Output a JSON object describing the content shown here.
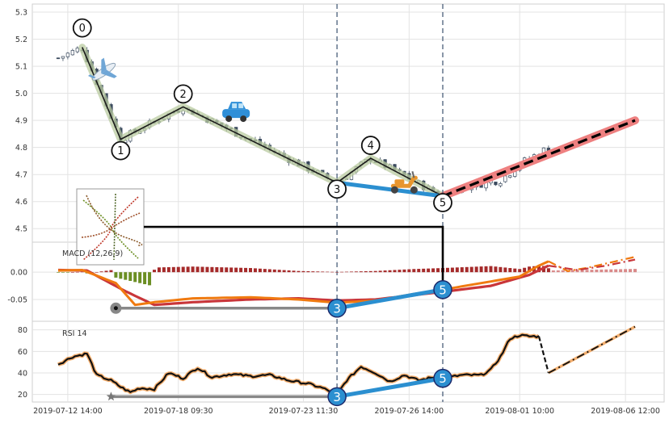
{
  "chart_data": [
    {
      "panel": "price",
      "type": "candlestick",
      "ylim": [
        4.45,
        5.33
      ],
      "y_ticks": [
        4.5,
        4.6,
        4.7,
        4.8,
        4.9,
        5.0,
        5.1,
        5.2,
        5.3
      ],
      "grid": true,
      "wave_points": [
        {
          "label": "0",
          "bar": 5,
          "value": 5.17
        },
        {
          "label": "1",
          "bar": 13,
          "value": 4.83
        },
        {
          "label": "2",
          "bar": 26,
          "value": 4.95
        },
        {
          "label": "3",
          "bar": 58,
          "value": 4.67
        },
        {
          "label": "4",
          "bar": 65,
          "value": 4.76
        },
        {
          "label": "5",
          "bar": 80,
          "value": 4.62
        }
      ],
      "projection": {
        "from_bar": 80,
        "from_value": 4.62,
        "to_bar": 120,
        "to_value": 4.9
      },
      "divergence_segment": {
        "from": "3",
        "to": "5"
      },
      "icons": [
        "airplane-icon",
        "car-icon",
        "scooter-icon"
      ]
    },
    {
      "panel": "macd",
      "type": "bar+line",
      "title": "MACD (12,26,9)",
      "ylim": [
        -0.09,
        0.055
      ],
      "y_ticks": [
        0.0,
        -0.05
      ],
      "tick_labels": [
        "0.00",
        "-0.05"
      ],
      "markers": [
        {
          "label": "3",
          "bar": 58,
          "value": -0.066
        },
        {
          "label": "5",
          "bar": 80,
          "value": -0.032
        }
      ]
    },
    {
      "panel": "rsi",
      "type": "line",
      "title": "RSI 14",
      "ylim": [
        13,
        88
      ],
      "y_ticks": [
        20,
        40,
        60,
        80
      ],
      "markers": [
        {
          "label": "3",
          "bar": 58,
          "value": 18
        },
        {
          "label": "5",
          "bar": 80,
          "value": 35
        }
      ]
    }
  ],
  "x_axis": {
    "tick_labels": [
      "2019-07-12 14:00",
      "2019-07-18 09:30",
      "2019-07-23 11:30",
      "2019-07-26 14:00",
      "2019-08-01 10:00",
      "2019-08-06 12:00"
    ],
    "tick_bars": [
      2,
      25,
      51,
      73,
      96,
      118
    ],
    "total_bars": 120,
    "vlines_at_bars": [
      58,
      80
    ]
  }
}
